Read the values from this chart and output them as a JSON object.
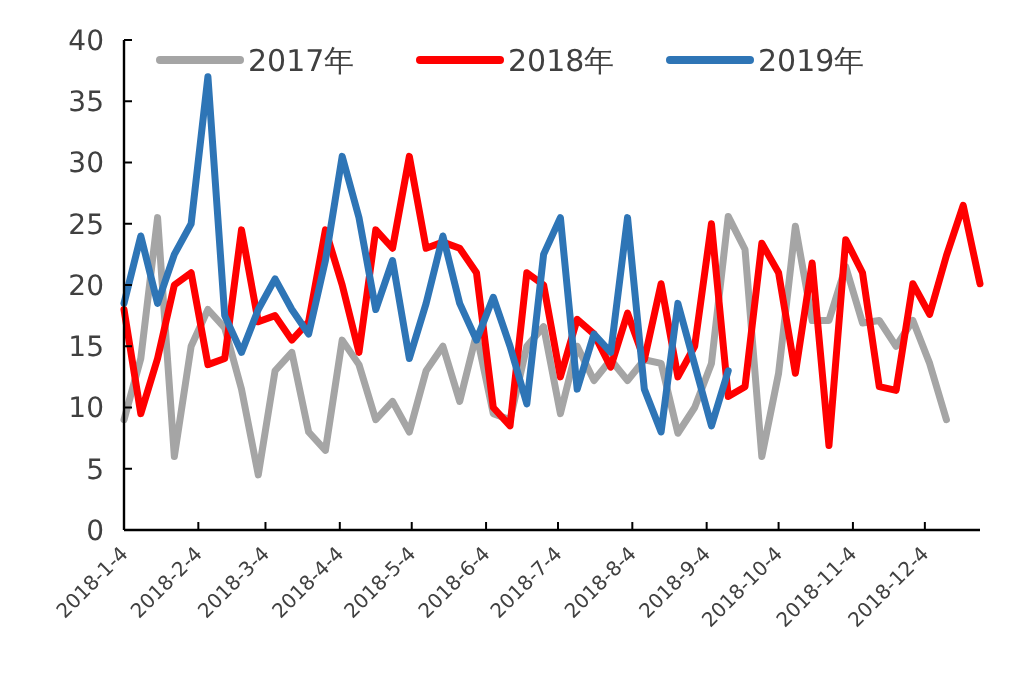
{
  "chart_data": {
    "type": "line",
    "legend": "top",
    "grid": false,
    "marker": "none",
    "line_style": "solid",
    "x": [
      "2018-01-04",
      "2018-01-11",
      "2018-01-18",
      "2018-01-25",
      "2018-02-01",
      "2018-02-08",
      "2018-02-15",
      "2018-02-22",
      "2018-03-01",
      "2018-03-08",
      "2018-03-15",
      "2018-03-22",
      "2018-03-29",
      "2018-04-05",
      "2018-04-12",
      "2018-04-19",
      "2018-04-26",
      "2018-05-03",
      "2018-05-10",
      "2018-05-17",
      "2018-05-24",
      "2018-05-31",
      "2018-06-07",
      "2018-06-14",
      "2018-06-21",
      "2018-06-28",
      "2018-07-05",
      "2018-07-12",
      "2018-07-19",
      "2018-07-26",
      "2018-08-02",
      "2018-08-09",
      "2018-08-16",
      "2018-08-23",
      "2018-08-30",
      "2018-09-06",
      "2018-09-13",
      "2018-09-20",
      "2018-09-27",
      "2018-10-04",
      "2018-10-11",
      "2018-10-18",
      "2018-10-25",
      "2018-11-01",
      "2018-11-08",
      "2018-11-15",
      "2018-11-22",
      "2018-11-29",
      "2018-12-06",
      "2018-12-13",
      "2018-12-20",
      "2018-12-27"
    ],
    "xlim": [
      "2018-01-04",
      "2018-12-27"
    ],
    "xticks": [
      {
        "value": "2018-01-04",
        "label": "2018-1-4"
      },
      {
        "value": "2018-02-04",
        "label": "2018-2-4"
      },
      {
        "value": "2018-03-04",
        "label": "2018-3-4"
      },
      {
        "value": "2018-04-04",
        "label": "2018-4-4"
      },
      {
        "value": "2018-05-04",
        "label": "2018-5-4"
      },
      {
        "value": "2018-06-04",
        "label": "2018-6-4"
      },
      {
        "value": "2018-07-04",
        "label": "2018-7-4"
      },
      {
        "value": "2018-08-04",
        "label": "2018-8-4"
      },
      {
        "value": "2018-09-04",
        "label": "2018-9-4"
      },
      {
        "value": "2018-10-04",
        "label": "2018-10-4"
      },
      {
        "value": "2018-11-04",
        "label": "2018-11-4"
      },
      {
        "value": "2018-12-04",
        "label": "2018-12-4"
      }
    ],
    "ylim": [
      0,
      40
    ],
    "yticks": [
      0,
      5,
      10,
      15,
      20,
      25,
      30,
      35,
      40
    ],
    "series": [
      {
        "name": "2017年",
        "color": "#a5a5a5",
        "values": [
          9,
          14,
          25.5,
          6,
          15,
          18,
          16.5,
          11.5,
          4.5,
          13,
          14.5,
          8,
          6.5,
          15.5,
          13.5,
          9,
          10.5,
          8,
          13,
          15,
          10.5,
          16,
          9.5,
          9,
          15,
          16.6,
          9.5,
          15,
          12.2,
          13.9,
          12.2,
          13.9,
          13.6,
          7.9,
          10,
          13.6,
          25.6,
          22.9,
          6,
          12.8,
          24.8,
          17.1,
          17.1,
          21.5,
          16.9,
          17.1,
          15,
          17.1,
          13.6,
          9,
          null,
          null
        ]
      },
      {
        "name": "2018年",
        "color": "#ff0000",
        "values": [
          18,
          9.5,
          14,
          20,
          21,
          13.5,
          14,
          24.5,
          17,
          17.5,
          15.5,
          17,
          24.5,
          20,
          14.5,
          24.5,
          23,
          30.5,
          23,
          23.5,
          23,
          21,
          10,
          8.5,
          21,
          20,
          12.5,
          17.2,
          16,
          13.3,
          17.7,
          13.9,
          20.1,
          12.5,
          15,
          25,
          10.9,
          11.7,
          23.4,
          21,
          12.8,
          21.8,
          6.9,
          23.7,
          21,
          11.7,
          11.4,
          20.1,
          17.6,
          22.4,
          26.5,
          20.1
        ]
      },
      {
        "name": "2019年",
        "color": "#2e75b6",
        "values": [
          18.5,
          24,
          18.5,
          22.5,
          25,
          37,
          17.5,
          14.5,
          18,
          20.5,
          18,
          16,
          22,
          30.5,
          25.5,
          18,
          22,
          14,
          18.5,
          24,
          18.5,
          15.5,
          19,
          15,
          10.3,
          22.5,
          25.5,
          11.5,
          16,
          14.5,
          25.5,
          11.5,
          8,
          18.5,
          13.5,
          8.5,
          13,
          null,
          null,
          null,
          null,
          null,
          null,
          null,
          null,
          null,
          null,
          null,
          null,
          null,
          null,
          null
        ]
      }
    ]
  }
}
